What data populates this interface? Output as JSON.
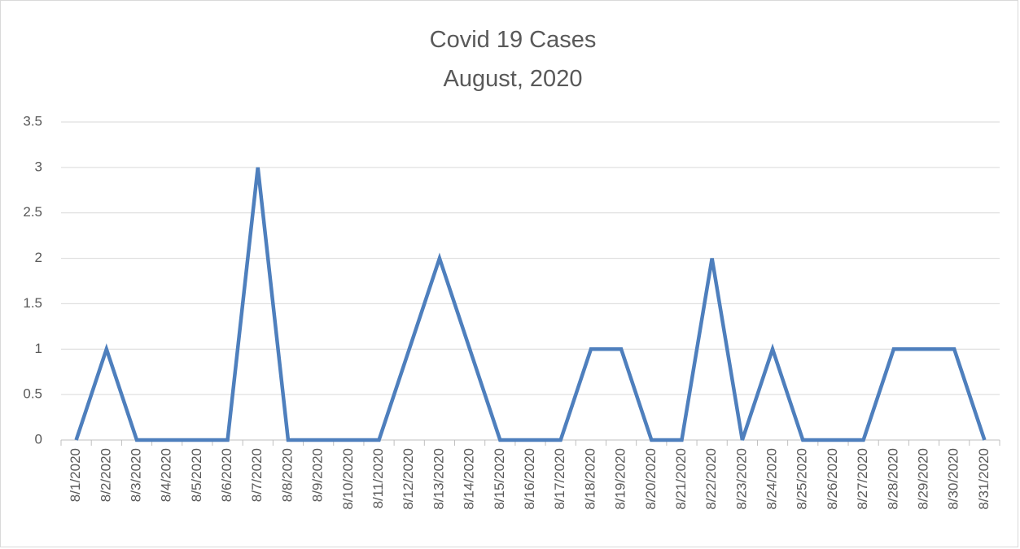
{
  "chart_data": {
    "type": "line",
    "title": "Covid 19 Cases",
    "subtitle": "August, 2020",
    "categories": [
      "8/1/2020",
      "8/2/2020",
      "8/3/2020",
      "8/4/2020",
      "8/5/2020",
      "8/6/2020",
      "8/7/2020",
      "8/8/2020",
      "8/9/2020",
      "8/10/2020",
      "8/11/2020",
      "8/12/2020",
      "8/13/2020",
      "8/14/2020",
      "8/15/2020",
      "8/16/2020",
      "8/17/2020",
      "8/18/2020",
      "8/19/2020",
      "8/20/2020",
      "8/21/2020",
      "8/22/2020",
      "8/23/2020",
      "8/24/2020",
      "8/25/2020",
      "8/26/2020",
      "8/27/2020",
      "8/28/2020",
      "8/29/2020",
      "8/30/2020",
      "8/31/2020"
    ],
    "values": [
      0,
      1,
      0,
      0,
      0,
      0,
      3,
      0,
      0,
      0,
      0,
      1,
      2,
      1,
      0,
      0,
      0,
      1,
      1,
      0,
      0,
      2,
      0,
      1,
      0,
      0,
      0,
      1,
      1,
      1,
      0
    ],
    "color": "#4e7fbd",
    "ylim": [
      0,
      3.5
    ],
    "yticks": [
      0,
      0.5,
      1,
      1.5,
      2,
      2.5,
      3,
      3.5
    ],
    "grid": true
  }
}
